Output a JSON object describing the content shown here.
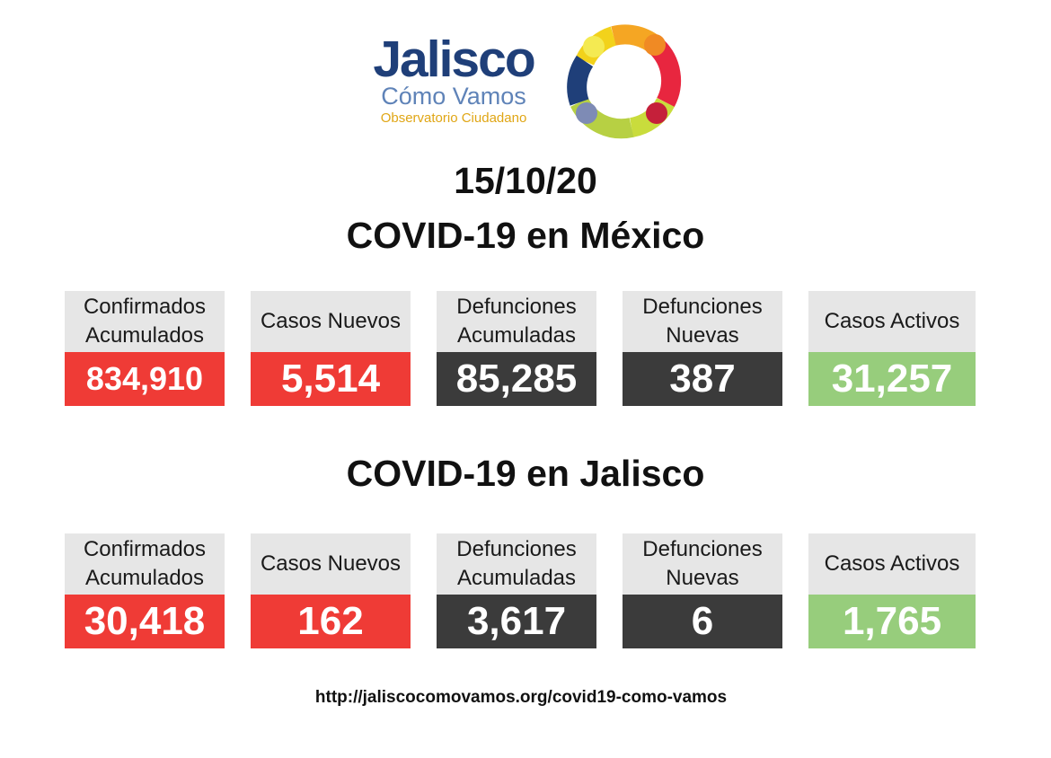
{
  "logo": {
    "title": "Jalisco",
    "subtitle": "Cómo Vamos",
    "tagline": "Observatorio Ciudadano"
  },
  "date": "15/10/20",
  "mexico": {
    "title": "COVID-19 en México",
    "cards": [
      {
        "label": "Confirmados\nAcumulados",
        "value": "834,910"
      },
      {
        "label": "Casos Nuevos",
        "value": "5,514"
      },
      {
        "label": "Defunciones\nAcumuladas",
        "value": "85,285"
      },
      {
        "label": "Defunciones\nNuevas",
        "value": "387"
      },
      {
        "label": "Casos Activos",
        "value": "31,257"
      }
    ]
  },
  "jalisco": {
    "title": "COVID-19 en Jalisco",
    "cards": [
      {
        "label": "Confirmados\nAcumulados",
        "value": "30,418"
      },
      {
        "label": "Casos Nuevos",
        "value": "162"
      },
      {
        "label": "Defunciones\nAcumuladas",
        "value": "3,617"
      },
      {
        "label": "Defunciones\nNuevas",
        "value": "6"
      },
      {
        "label": "Casos Activos",
        "value": "1,765"
      }
    ]
  },
  "colors": {
    "red": "#ef3b36",
    "dark": "#3b3b3b",
    "green": "#97cd7c",
    "label_bg": "#e6e6e6"
  },
  "footer": {
    "url": "http://jaliscocomovamos.org/covid19-como-vamos"
  }
}
